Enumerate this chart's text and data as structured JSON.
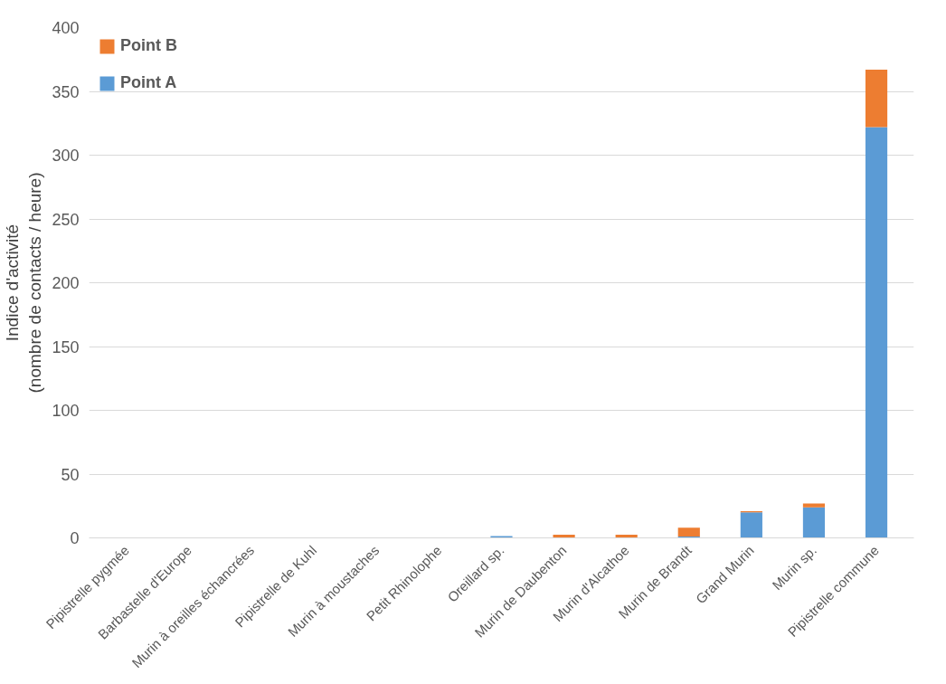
{
  "chart_data": {
    "type": "bar",
    "stacked": true,
    "ylabel": "Indice d'activité\n(nombre de contacts / heure)",
    "categories": [
      "Pipistrelle pygmée",
      "Barbastelle d'Europe",
      "Murin à oreilles échancrées",
      "Pipistrelle de Kuhl",
      "Murin à moustaches",
      "Petit Rhinolophe",
      "Oreillard sp.",
      "Murin de Daubenton",
      "Murin d'Alcathoe",
      "Murin de Brandt",
      "Grand Murin",
      "Murin sp.",
      "Pipistrelle commune"
    ],
    "series": [
      {
        "name": "Point A",
        "color": "#5b9bd5",
        "values": [
          0,
          0,
          0,
          0,
          0,
          0,
          1.5,
          0,
          0,
          1,
          20,
          24,
          322
        ]
      },
      {
        "name": "Point B",
        "color": "#ed7d31",
        "values": [
          0,
          0,
          0,
          0,
          0,
          0,
          0,
          2.5,
          2.5,
          7,
          1,
          3,
          45
        ]
      }
    ],
    "ylim": [
      0,
      400
    ],
    "yticks": [
      0,
      50,
      100,
      150,
      200,
      250,
      300,
      350,
      400
    ],
    "grid": "y",
    "legend": "top left"
  }
}
